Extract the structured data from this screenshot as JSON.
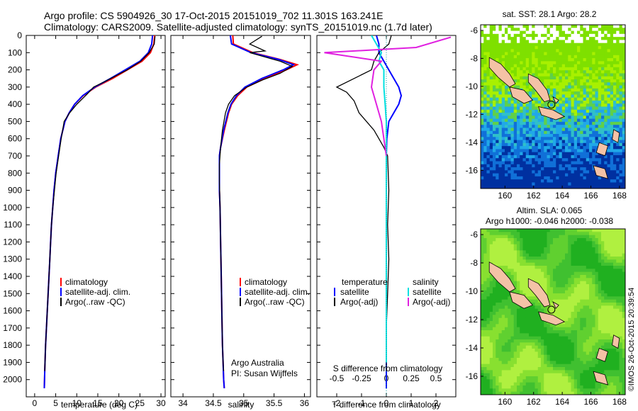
{
  "title": {
    "line1": "Argo profile: CS 5904926_30 17-Oct-2015 20151019_702 11.301S 163.241E",
    "line2": "Climatology: CARS2009. Satellite-adjusted climatology: synTS_20151019.nc (1.7d later)"
  },
  "watermark": "©IMOS 26-Oct-2015 20:39:54",
  "colors": {
    "climatology": "#ff0000",
    "satellite": "#0000ff",
    "argo": "#000000",
    "salinity_satellite": "#00e0e0",
    "salinity_argo": "#e020e0",
    "land": "#f4c2a6"
  },
  "chart_data": [
    {
      "type": "line",
      "name": "temperature",
      "xlabel": "temperature (deg C)",
      "ylabel": "",
      "xlim": [
        -2,
        31
      ],
      "ylim": [
        2100,
        0
      ],
      "xticks": [
        0,
        5,
        10,
        15,
        20,
        25,
        30
      ],
      "xtick_labels": [
        "0",
        "5",
        "10",
        "15",
        "20",
        "25",
        "30"
      ],
      "yticks": [
        0,
        100,
        200,
        300,
        400,
        500,
        600,
        700,
        800,
        900,
        1000,
        1100,
        1200,
        1300,
        1400,
        1500,
        1600,
        1700,
        1800,
        1900,
        2000
      ],
      "ytick_labels": [
        "0",
        "100",
        "200",
        "300",
        "400",
        "500",
        "600",
        "700",
        "800",
        "900",
        "1000",
        "1100",
        "1200",
        "1300",
        "1400",
        "1500",
        "1600",
        "1700",
        "1800",
        "1900",
        "2000"
      ],
      "legend": [
        "climatology",
        "satellite-adj. clim.",
        "Argo(..raw -QC)"
      ],
      "series": [
        {
          "name": "climatology",
          "color": "#ff0000",
          "x": [
            28.5,
            28.3,
            27.5,
            25.5,
            22,
            18.5,
            14.5,
            11.5,
            9.5,
            8.2,
            7.2,
            6.2,
            5.6,
            5.0,
            4.6,
            4.3,
            4.0,
            3.8,
            3.6,
            3.4,
            3.2,
            3.0,
            2.8,
            2.6,
            2.4,
            2.3
          ],
          "y": [
            0,
            50,
            100,
            150,
            200,
            250,
            300,
            350,
            400,
            450,
            500,
            600,
            700,
            800,
            900,
            1000,
            1100,
            1200,
            1300,
            1400,
            1500,
            1600,
            1700,
            1800,
            1950,
            2050
          ]
        },
        {
          "name": "satellite-adj. clim.",
          "color": "#0000ff",
          "x": [
            28.0,
            27.8,
            27.0,
            25.0,
            21.5,
            18.0,
            14.3,
            11.4,
            9.5,
            8.2,
            7.2,
            6.2,
            5.6,
            5.0,
            4.6,
            4.3,
            4.0,
            3.8,
            3.6,
            3.4,
            3.2,
            3.0,
            2.8,
            2.6,
            2.4,
            2.3
          ],
          "y": [
            0,
            50,
            100,
            150,
            200,
            250,
            300,
            350,
            400,
            450,
            500,
            600,
            700,
            800,
            900,
            1000,
            1100,
            1200,
            1300,
            1400,
            1500,
            1600,
            1700,
            1800,
            1950,
            2050
          ]
        },
        {
          "name": "Argo(..raw -QC)",
          "color": "#000000",
          "x": [
            28.6,
            28.4,
            27.2,
            25.2,
            22.0,
            16.5,
            14.0,
            12.5,
            10.0,
            8.3,
            7.0,
            6.3,
            5.7,
            5.1,
            4.7,
            4.3,
            4.0,
            3.8,
            3.6,
            3.4,
            3.2,
            3.0,
            2.8,
            2.6,
            2.4
          ],
          "y": [
            5,
            50,
            100,
            150,
            200,
            270,
            300,
            340,
            400,
            450,
            500,
            600,
            700,
            800,
            900,
            1000,
            1100,
            1200,
            1300,
            1400,
            1500,
            1600,
            1700,
            1800,
            1950
          ]
        }
      ]
    },
    {
      "type": "line",
      "name": "salinity",
      "xlabel": "salinity",
      "xlim": [
        33.8,
        36.1
      ],
      "ylim": [
        2100,
        0
      ],
      "xticks": [
        34,
        34.5,
        35,
        35.5,
        36
      ],
      "xtick_labels": [
        "34",
        "34.5",
        "35",
        "35.5",
        "36"
      ],
      "legend": [
        "climatology",
        "satellite-adj. clim.",
        "Argo(..raw -QC)"
      ],
      "annotation": {
        "line1": "Argo Australia",
        "line2": "PI: Susan Wijffels"
      },
      "series": [
        {
          "name": "climatology",
          "color": "#ff0000",
          "x": [
            34.82,
            34.83,
            35.15,
            35.6,
            35.88,
            35.7,
            35.35,
            35.05,
            34.9,
            34.8,
            34.75,
            34.68,
            34.62,
            34.6,
            34.6,
            34.6,
            34.61,
            34.62,
            34.63,
            34.64,
            34.65,
            34.66,
            34.67,
            34.68
          ],
          "y": [
            0,
            50,
            100,
            140,
            170,
            200,
            250,
            300,
            350,
            400,
            450,
            550,
            650,
            700,
            800,
            900,
            1000,
            1200,
            1400,
            1600,
            1800,
            1900,
            2000,
            2050
          ]
        },
        {
          "name": "satellite-adj. clim.",
          "color": "#0000ff",
          "x": [
            34.78,
            34.8,
            35.12,
            35.58,
            35.82,
            35.65,
            35.3,
            35.02,
            34.88,
            34.79,
            34.74,
            34.67,
            34.62,
            34.6,
            34.6,
            34.6,
            34.61,
            34.62,
            34.63,
            34.64,
            34.65,
            34.66,
            34.67,
            34.68
          ],
          "y": [
            0,
            50,
            100,
            140,
            170,
            200,
            250,
            300,
            350,
            400,
            450,
            550,
            650,
            700,
            800,
            900,
            1000,
            1200,
            1400,
            1600,
            1800,
            1900,
            2000,
            2050
          ]
        },
        {
          "name": "Argo(..raw -QC)",
          "color": "#000000",
          "x": [
            35.3,
            35.1,
            35.35,
            35.1,
            35.6,
            35.8,
            35.6,
            35.3,
            35.05,
            34.85,
            34.75,
            34.7,
            34.65,
            34.62,
            34.6,
            34.6,
            34.61,
            34.62,
            34.63,
            34.64,
            34.65,
            34.66,
            34.67
          ],
          "y": [
            5,
            50,
            90,
            100,
            150,
            180,
            220,
            260,
            300,
            350,
            400,
            450,
            550,
            650,
            750,
            850,
            1000,
            1200,
            1400,
            1600,
            1800,
            1900,
            1950
          ]
        }
      ]
    },
    {
      "type": "line",
      "name": "differences",
      "xlabel": "T difference from climatology",
      "xlabel_top": "S difference from climatology",
      "xlim": [
        -2.8,
        2.8
      ],
      "ylim": [
        2100,
        0
      ],
      "xticks": [
        -2,
        -1,
        0,
        1,
        2
      ],
      "xtick_labels": [
        "-2",
        "-1",
        "0",
        "1",
        "2"
      ],
      "sticks": [
        -2,
        -1,
        0,
        1,
        2
      ],
      "stick_labels": [
        "-0.5",
        "-0.25",
        "0",
        "0.25",
        "0.5"
      ],
      "legend_temperature": {
        "title": "temperature",
        "items": [
          "satellite",
          "Argo(-adj)"
        ]
      },
      "legend_salinity": {
        "title": "salinity",
        "items": [
          "satellite",
          "Argo(-adj)"
        ]
      },
      "series": [
        {
          "name": "temperature satellite",
          "color": "#0000ff",
          "x": [
            -0.4,
            -0.3,
            -0.3,
            -0.1,
            0.1,
            0.3,
            0.5,
            0.6,
            0.5,
            0.3,
            0.1,
            0.02,
            0,
            0,
            0,
            0,
            0
          ],
          "y": [
            0,
            50,
            100,
            150,
            200,
            250,
            300,
            350,
            400,
            450,
            500,
            600,
            700,
            1000,
            1400,
            1800,
            2050
          ]
        },
        {
          "name": "temperature Argo(-adj)",
          "color": "#000000",
          "x": [
            0.2,
            0.1,
            -0.3,
            -0.5,
            -0.6,
            -2.0,
            -1.6,
            -1.3,
            -1.1,
            -0.8,
            -0.5,
            -0.3,
            -0.1,
            0.05,
            0.1,
            0.05,
            0.1,
            0.05,
            0,
            0
          ],
          "y": [
            0,
            50,
            100,
            150,
            200,
            300,
            330,
            380,
            450,
            500,
            550,
            600,
            650,
            700,
            900,
            1100,
            1300,
            1500,
            1700,
            1950
          ]
        },
        {
          "name": "salinity satellite",
          "color": "#00e0e0",
          "x": [
            -0.6,
            -0.4,
            -0.2,
            -0.3,
            -0.1,
            -0.1,
            -0.05,
            0,
            0,
            0,
            0
          ],
          "y": [
            0,
            50,
            100,
            150,
            200,
            300,
            400,
            500,
            800,
            1300,
            1900
          ]
        },
        {
          "name": "salinity Argo(-adj)",
          "color": "#e020e0",
          "x": [
            2.6,
            1.2,
            -2.5,
            -0.2,
            -0.5,
            -0.6,
            -0.4,
            -0.2,
            -0.1,
            0
          ],
          "y": [
            10,
            70,
            100,
            150,
            200,
            300,
            400,
            500,
            600,
            700
          ]
        }
      ]
    },
    {
      "type": "heatmap",
      "name": "sst-map",
      "title": "sat. SST: 28.1  Argo: 28.2",
      "xlim": [
        158.3,
        168.4
      ],
      "ylim": [
        -17.3,
        -5.6
      ],
      "xticks": [
        160,
        162,
        164,
        166,
        168
      ],
      "xtick_labels": [
        "160",
        "162",
        "164",
        "166",
        "168"
      ],
      "yticks": [
        -6,
        -8,
        -10,
        -12,
        -14,
        -16
      ],
      "ytick_labels": [
        "-6",
        "-8",
        "-10",
        "-12",
        "-14",
        "-16"
      ],
      "argo_position": [
        163.241,
        -11.301
      ]
    },
    {
      "type": "heatmap",
      "name": "sla-map",
      "title": "Altim. SLA: 0.065",
      "subtitle": "Argo h1000: -0.046 h2000: -0.038",
      "xlim": [
        158.3,
        168.4
      ],
      "ylim": [
        -17.3,
        -5.6
      ],
      "xticks": [
        160,
        162,
        164,
        166,
        168
      ],
      "xtick_labels": [
        "160",
        "162",
        "164",
        "166",
        "168"
      ],
      "yticks": [
        -6,
        -8,
        -10,
        -12,
        -14,
        -16
      ],
      "ytick_labels": [
        "-6",
        "-8",
        "-10",
        "-12",
        "-14",
        "-16"
      ],
      "argo_position": [
        163.241,
        -11.301
      ]
    }
  ]
}
